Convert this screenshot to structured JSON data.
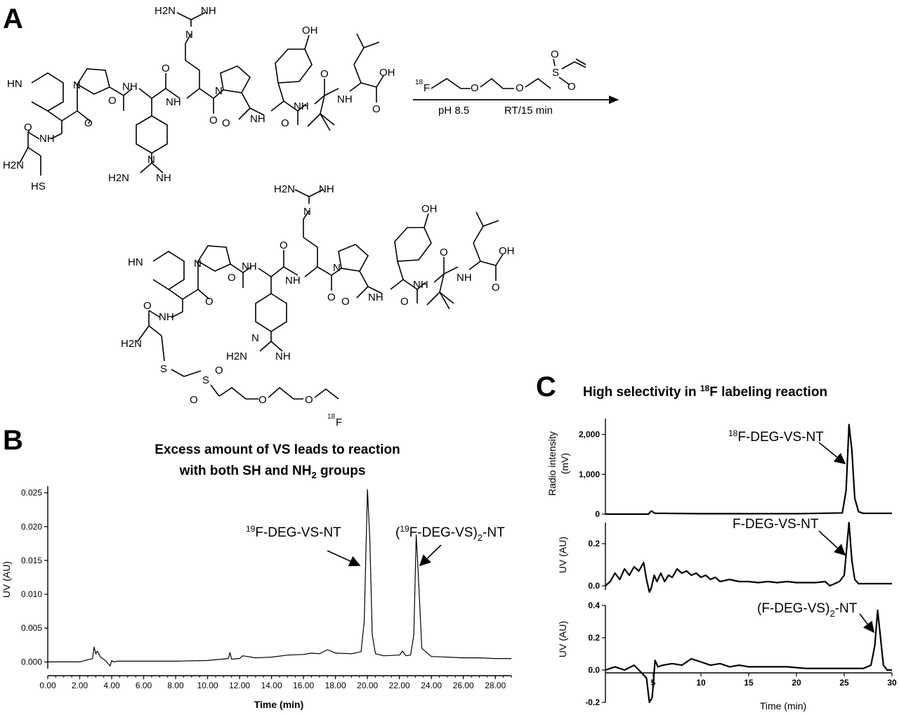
{
  "panels": {
    "a": "A",
    "b": "B",
    "c": "C"
  },
  "scheme": {
    "reagent_sup": "18",
    "reagent_atom": "F",
    "condition_ph": "pH 8.5",
    "condition_time": "RT/15 min"
  },
  "chem_labels": {
    "guan_top_h2n": "H2N",
    "guan_top_nh": "NH",
    "guan_top_n": "N",
    "guan_top_h": "H",
    "oh": "OH",
    "hn_pip": "HN",
    "n": "N",
    "o": "O",
    "nh": "NH",
    "h2n": "H2N",
    "hs": "HS",
    "s": "S",
    "f18_sup": "18",
    "f18_atom": "F"
  },
  "chart_b": {
    "title_line1": "Excess amount of VS leads to reaction",
    "title_line2_pre": "with both SH and NH",
    "title_line2_sub": "2",
    "title_line2_post": " groups",
    "xlabel": "Time (min)",
    "ylabel": "UV (AU)",
    "peak1_sup": "19",
    "peak1_text": "F-DEG-VS-NT",
    "peak2_pre": "(",
    "peak2_sup": "19",
    "peak2_mid": "F-DEG-VS)",
    "peak2_sub": "2",
    "peak2_post": "-NT"
  },
  "chart_c": {
    "title_pre": "High selectivity in ",
    "title_sup": "18",
    "title_post": "F labeling reaction",
    "xlabel": "Time (min)",
    "ylabel_top_line1": "Radio intensity",
    "ylabel_top_line2": "(mV)",
    "ylabel_mid": "UV (AU)",
    "ylabel_bot": "UV (AU)",
    "peak_top_sup": "18",
    "peak_top_text": "F-DEG-VS-NT",
    "peak_mid_text": "F-DEG-VS-NT",
    "peak_bot_pre": "(F-DEG-VS)",
    "peak_bot_sub": "2",
    "peak_bot_post": "-NT"
  },
  "chart_data": [
    {
      "type": "line",
      "title": "Excess amount of VS leads to reaction with both SH and NH2 groups",
      "xlabel": "Time (min)",
      "ylabel": "UV (AU)",
      "xlim": [
        0,
        29
      ],
      "ylim": [
        -0.001,
        0.026
      ],
      "xticks": [
        "0.00",
        "2.00",
        "4.00",
        "6.00",
        "8.00",
        "10.00",
        "12.00",
        "14.00",
        "16.00",
        "18.00",
        "20.00",
        "22.00",
        "24.00",
        "26.00",
        "28.00"
      ],
      "yticks": [
        "0.000",
        "0.005",
        "0.010",
        "0.015",
        "0.020",
        "0.025"
      ],
      "series": [
        {
          "x": [
            0,
            2.0,
            2.8,
            2.9,
            3.0,
            3.1,
            3.3,
            3.6,
            3.9,
            4.0,
            4.1,
            4.4,
            6.0,
            8.0,
            10.0,
            11.3,
            11.4,
            11.5,
            12.0,
            12.2,
            13.0,
            14.0,
            15.0,
            16.0,
            16.5,
            17.0,
            17.5,
            18.0,
            19.0,
            19.6,
            19.8,
            20.0,
            20.15,
            20.3,
            20.5,
            21.0,
            22.0,
            22.2,
            22.4,
            22.7,
            22.9,
            23.05,
            23.2,
            23.4,
            24.0,
            25.0,
            26.0,
            27.0,
            28.0,
            29.0
          ],
          "y": [
            0.0,
            0.0,
            0.0005,
            0.0022,
            0.0012,
            0.0016,
            0.0007,
            0.0002,
            -0.0006,
            0.0002,
            0.0,
            0.0001,
            0.0001,
            0.0001,
            0.0002,
            0.0005,
            0.0014,
            0.0004,
            0.0005,
            0.0009,
            0.0006,
            0.0007,
            0.001,
            0.0011,
            0.0013,
            0.0012,
            0.0018,
            0.0013,
            0.0012,
            0.0015,
            0.006,
            0.0255,
            0.018,
            0.004,
            0.0012,
            0.0009,
            0.001,
            0.0016,
            0.0009,
            0.001,
            0.004,
            0.0188,
            0.012,
            0.002,
            0.0008,
            0.0007,
            0.0006,
            0.0006,
            0.0005,
            0.0005
          ]
        }
      ],
      "annotations": [
        "19F-DEG-VS-NT",
        "(19F-DEG-VS)2-NT"
      ]
    },
    {
      "type": "line",
      "title": "High selectivity in 18F labeling reaction",
      "xlabel": "Time (min)",
      "ylabel": "Radio intensity (mV)",
      "xlim": [
        0,
        30
      ],
      "ylim": [
        0,
        2400
      ],
      "yticks": [
        "0",
        "1,000",
        "2,000"
      ],
      "series": [
        {
          "x": [
            0,
            4.5,
            4.8,
            5.2,
            6,
            10,
            20,
            24.8,
            25.2,
            25.5,
            25.8,
            26.1,
            26.5,
            27,
            30
          ],
          "y": [
            0,
            0,
            80,
            20,
            20,
            10,
            10,
            30,
            600,
            2250,
            1600,
            400,
            60,
            20,
            20
          ]
        }
      ],
      "annotations": [
        "18F-DEG-VS-NT"
      ]
    },
    {
      "type": "line",
      "ylabel": "UV (AU)",
      "xlim": [
        0,
        30
      ],
      "ylim": [
        -0.02,
        0.3
      ],
      "yticks": [
        "0.0",
        "0.2"
      ],
      "series": [
        {
          "x": [
            0,
            0.5,
            1,
            1.5,
            2,
            2.5,
            3,
            3.5,
            4,
            4.3,
            4.6,
            4.8,
            5.1,
            5.4,
            5.8,
            6.2,
            6.6,
            7.0,
            7.5,
            8.0,
            8.5,
            9.0,
            9.5,
            10.0,
            10.5,
            11.0,
            11.5,
            12.0,
            13.0,
            14.0,
            15.0,
            16.0,
            17.0,
            18.0,
            19.0,
            20.0,
            21.0,
            22.0,
            23.0,
            23.5,
            24.0,
            24.5,
            25.0,
            25.3,
            25.5,
            25.8,
            26.1,
            26.5,
            27,
            28,
            30
          ],
          "y": [
            0.0,
            0.02,
            0.06,
            0.03,
            0.08,
            0.05,
            0.09,
            0.07,
            0.11,
            0.03,
            -0.03,
            -0.01,
            0.05,
            0.02,
            0.06,
            0.02,
            0.05,
            0.04,
            0.08,
            0.06,
            0.07,
            0.05,
            0.06,
            0.04,
            0.05,
            0.03,
            0.04,
            0.02,
            0.03,
            0.02,
            0.02,
            0.015,
            0.02,
            0.015,
            0.02,
            0.015,
            0.015,
            0.015,
            0.02,
            0.0,
            0.01,
            0.02,
            0.05,
            0.2,
            0.3,
            0.12,
            0.03,
            0.01,
            0.01,
            0.01,
            0.01
          ]
        }
      ],
      "annotations": [
        "F-DEG-VS-NT"
      ]
    },
    {
      "type": "line",
      "ylabel": "UV (AU)",
      "xlabel": "Time (min)",
      "xlim": [
        0,
        30
      ],
      "ylim": [
        -0.2,
        0.4
      ],
      "xticks": [
        "5",
        "10",
        "15",
        "20",
        "25",
        "30"
      ],
      "yticks": [
        "-0.2",
        "0.0",
        "0.2",
        "0.4"
      ],
      "series": [
        {
          "x": [
            0,
            1,
            2,
            3,
            3.5,
            4,
            4.3,
            4.6,
            4.9,
            5.2,
            5.5,
            6,
            7,
            8,
            9,
            10,
            11,
            12,
            13,
            14,
            15,
            17,
            19,
            21,
            23,
            25,
            27,
            27.8,
            28.2,
            28.5,
            28.8,
            29.1,
            29.5,
            30
          ],
          "y": [
            0.0,
            0.02,
            0.0,
            0.03,
            0.0,
            -0.03,
            -0.05,
            -0.2,
            -0.17,
            0.06,
            0.02,
            0.03,
            0.04,
            0.03,
            0.07,
            0.05,
            0.03,
            0.04,
            0.02,
            0.03,
            0.02,
            0.02,
            0.02,
            0.01,
            0.01,
            0.01,
            0.01,
            0.03,
            0.15,
            0.37,
            0.2,
            0.03,
            0.0,
            0.0
          ]
        }
      ],
      "annotations": [
        "(F-DEG-VS)2-NT"
      ]
    }
  ]
}
